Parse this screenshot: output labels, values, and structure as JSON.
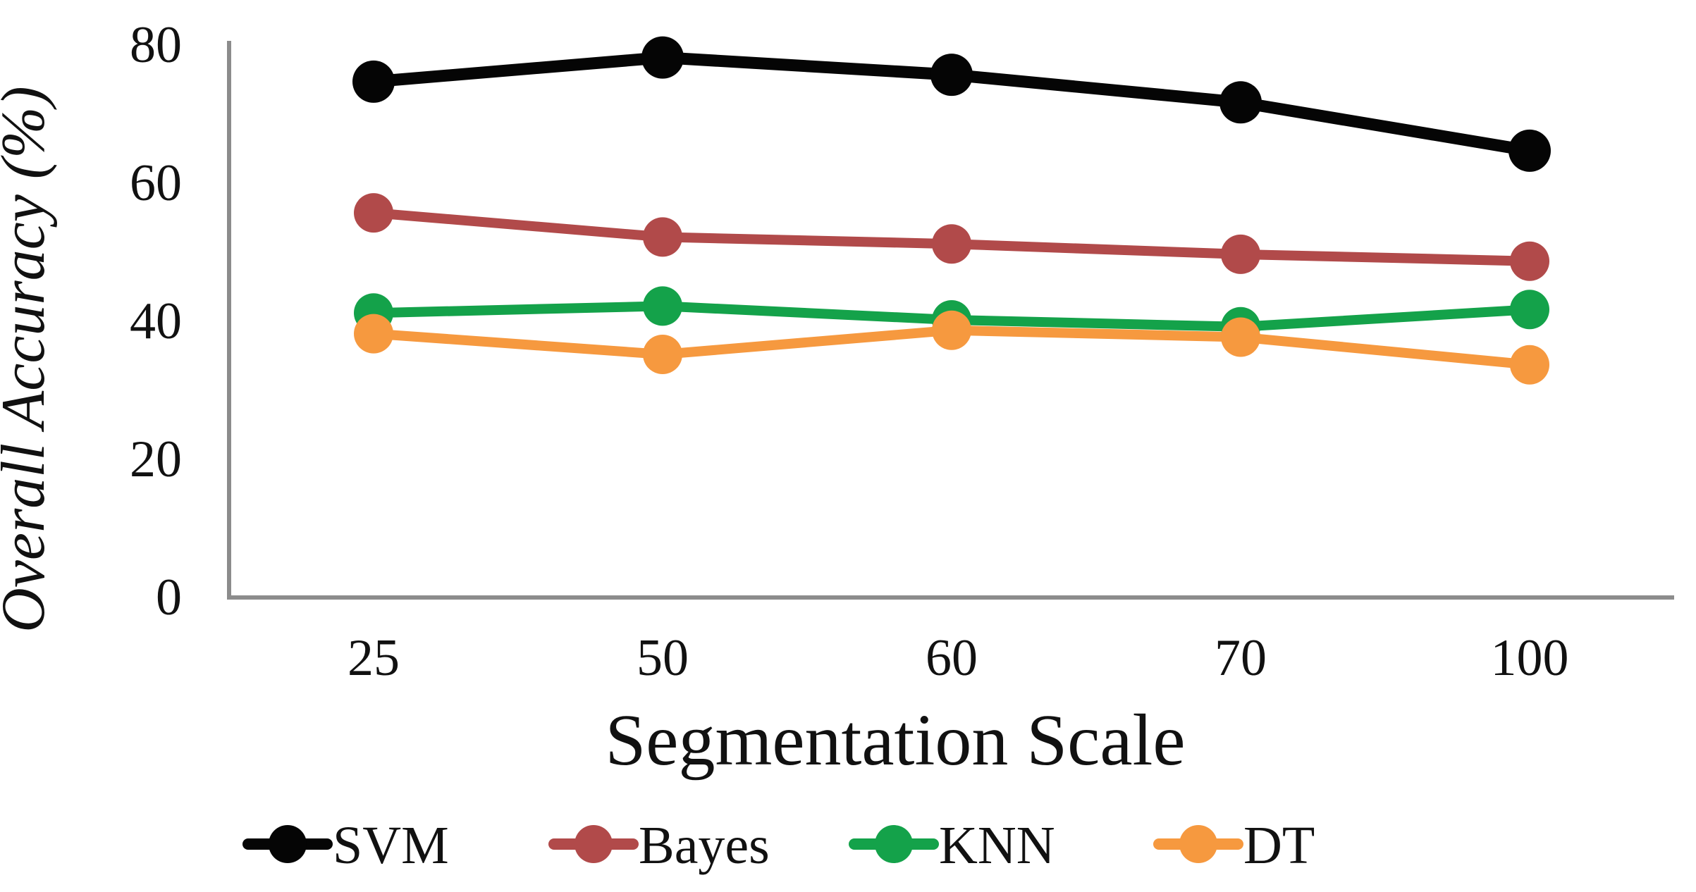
{
  "figure": {
    "background": "#ffffff",
    "text_color": "#111111"
  },
  "chart_data": {
    "type": "line",
    "title": "",
    "xlabel": "Segmentation Scale",
    "ylabel": "Overall Accuracy (%)",
    "categories": [
      "25",
      "50",
      "60",
      "70",
      "100"
    ],
    "y_ticks": [
      "0",
      "20",
      "40",
      "60",
      "80"
    ],
    "y_tick_values": [
      0,
      20,
      40,
      60,
      80
    ],
    "ylim": [
      0,
      80
    ],
    "grid": false,
    "legend_position": "bottom",
    "axis_color": "#8C8C8C",
    "series": [
      {
        "name": "SVM",
        "color": "#050505",
        "values": [
          74.5,
          78,
          75.5,
          71.5,
          64.5
        ]
      },
      {
        "name": "Bayes",
        "color": "#B14A4A",
        "values": [
          55.5,
          52,
          51,
          49.5,
          48.5
        ]
      },
      {
        "name": "KNN",
        "color": "#14A24A",
        "values": [
          41,
          42,
          40,
          39,
          41.5
        ]
      },
      {
        "name": "DT",
        "color": "#F6993F",
        "values": [
          38,
          35,
          38.5,
          37.5,
          33.5
        ]
      }
    ]
  }
}
